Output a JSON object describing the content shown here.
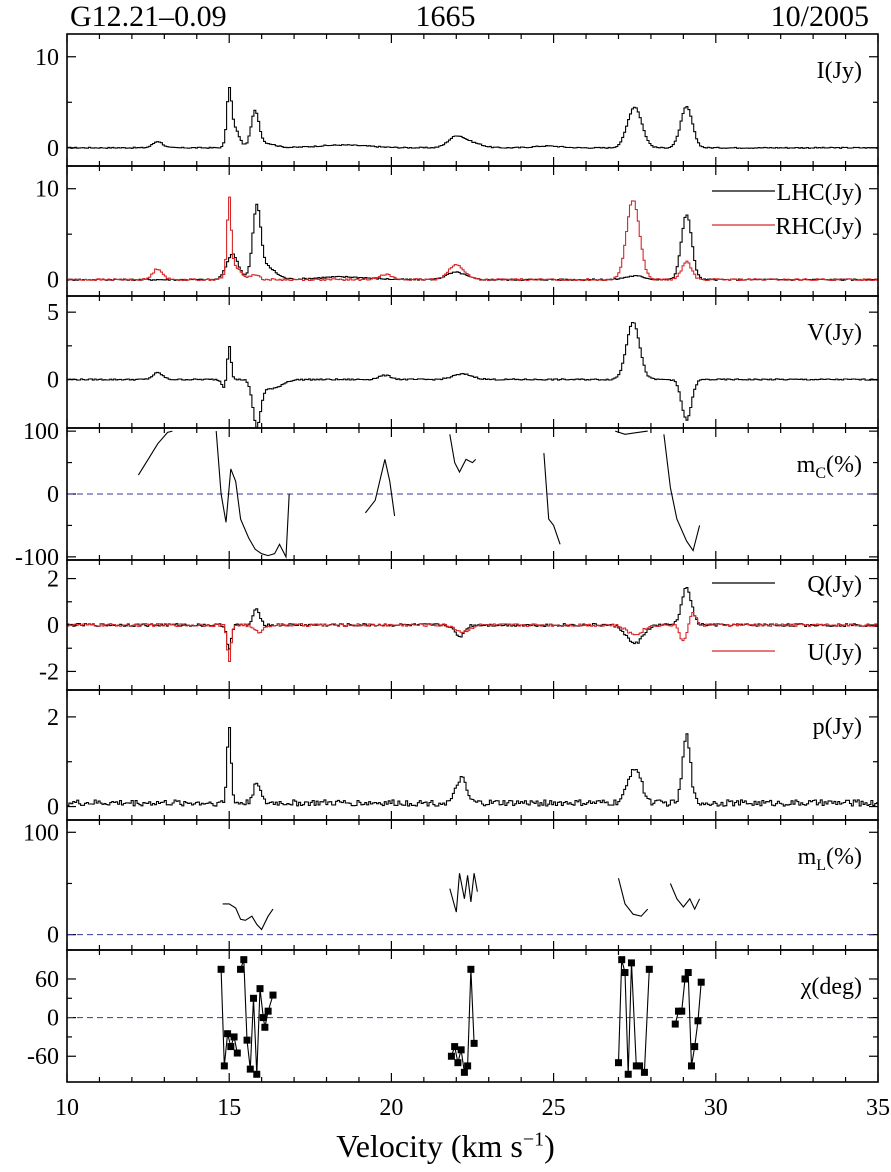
{
  "header": {
    "source": "G12.21–0.09",
    "frequency": "1665",
    "epoch": "10/2005"
  },
  "xlabel": {
    "text": "Velocity (km s",
    "exp": "−1",
    "close": ")"
  },
  "colors": {
    "axis": "#000000",
    "lhc": "#000000",
    "rhc": "#d62728",
    "zero_line": "#3b3b9a"
  },
  "chart_data": [
    {
      "id": "I",
      "type": "line",
      "label_text": "I(Jy)",
      "ylim": [
        -2,
        12.5
      ],
      "yticks": [
        {
          "v": 0,
          "t": "0"
        },
        {
          "v": 10,
          "t": "10"
        }
      ],
      "series": [
        {
          "color": "#000000",
          "peaks": [
            [
              12.8,
              0.7,
              0.15
            ],
            [
              15.0,
              5.3,
              0.07
            ],
            [
              15.15,
              2.2,
              0.15
            ],
            [
              15.8,
              3.8,
              0.12
            ],
            [
              16.1,
              0.5,
              0.3
            ],
            [
              18.5,
              0.3,
              0.8
            ],
            [
              22.0,
              1.2,
              0.25
            ],
            [
              22.5,
              0.5,
              0.3
            ],
            [
              24.8,
              0.2,
              0.4
            ],
            [
              27.5,
              4.5,
              0.22
            ],
            [
              29.1,
              4.5,
              0.18
            ]
          ],
          "noise": 0.06,
          "xlim": [
            10,
            35
          ]
        }
      ],
      "xlim": [
        10,
        35
      ]
    },
    {
      "id": "LR",
      "type": "line",
      "label_text": "",
      "ylim": [
        -1.8,
        12.5
      ],
      "yticks": [
        {
          "v": 0,
          "t": "0"
        },
        {
          "v": 10,
          "t": "10"
        }
      ],
      "legend": [
        {
          "name": "LHC(Jy)",
          "color": "#000000"
        },
        {
          "name": "RHC(Jy)",
          "color": "#d62728"
        }
      ],
      "series": [
        {
          "name": "LHC(Jy)",
          "color": "#000000",
          "peaks": [
            [
              15.1,
              2.8,
              0.18
            ],
            [
              15.85,
              7.2,
              0.12
            ],
            [
              16.1,
              1.5,
              0.3
            ],
            [
              18.5,
              0.3,
              0.8
            ],
            [
              22.0,
              0.8,
              0.3
            ],
            [
              27.5,
              0.4,
              0.3
            ],
            [
              29.1,
              7.2,
              0.16
            ]
          ],
          "noise": 0.08
        },
        {
          "name": "RHC(Jy)",
          "color": "#d62728",
          "peaks": [
            [
              12.8,
              1.2,
              0.15
            ],
            [
              15.0,
              8.0,
              0.06
            ],
            [
              15.15,
              1.5,
              0.2
            ],
            [
              15.8,
              0.6,
              0.12
            ],
            [
              19.8,
              0.6,
              0.2
            ],
            [
              22.0,
              1.6,
              0.25
            ],
            [
              27.45,
              8.8,
              0.2
            ],
            [
              29.1,
              2.0,
              0.15
            ]
          ],
          "noise": 0.1
        }
      ],
      "xlim": [
        10,
        35
      ]
    },
    {
      "id": "V",
      "type": "line",
      "label_text": "V(Jy)",
      "ylim": [
        -3.6,
        6.2
      ],
      "yticks": [
        {
          "v": 0,
          "t": "0"
        },
        {
          "v": 5,
          "t": "5"
        }
      ],
      "series": [
        {
          "color": "#000000",
          "peaks": [
            [
              12.8,
              0.5,
              0.15
            ],
            [
              15.0,
              2.6,
              0.06
            ],
            [
              14.85,
              -0.6,
              0.08
            ],
            [
              15.85,
              -3.3,
              0.12
            ],
            [
              16.3,
              -0.7,
              0.3
            ],
            [
              19.8,
              0.3,
              0.2
            ],
            [
              22.2,
              0.4,
              0.3
            ],
            [
              27.45,
              4.3,
              0.2
            ],
            [
              29.1,
              -3.0,
              0.15
            ]
          ],
          "noise": 0.05
        }
      ],
      "xlim": [
        10,
        35
      ]
    },
    {
      "id": "mc",
      "type": "line",
      "label_text": "m",
      "label_sub": "C",
      "label_tail": "(%)",
      "ylim": [
        -105,
        105
      ],
      "yticks": [
        {
          "v": -100,
          "t": "-100"
        },
        {
          "v": 0,
          "t": "0"
        },
        {
          "v": 100,
          "t": "100"
        }
      ],
      "zero_line": true,
      "segments": [
        [
          [
            12.2,
            30
          ],
          [
            12.5,
            55
          ],
          [
            12.8,
            80
          ],
          [
            13.1,
            98
          ],
          [
            13.25,
            100
          ]
        ],
        [
          [
            14.6,
            100
          ],
          [
            14.75,
            0
          ],
          [
            14.9,
            -45
          ],
          [
            15.05,
            40
          ],
          [
            15.2,
            20
          ],
          [
            15.35,
            -40
          ],
          [
            15.6,
            -70
          ],
          [
            15.8,
            -88
          ],
          [
            16.0,
            -95
          ],
          [
            16.2,
            -98
          ],
          [
            16.4,
            -95
          ],
          [
            16.55,
            -80
          ],
          [
            16.75,
            -100
          ],
          [
            16.85,
            0
          ]
        ],
        [
          [
            19.2,
            -30
          ],
          [
            19.5,
            -10
          ],
          [
            19.8,
            55
          ],
          [
            19.95,
            20
          ],
          [
            20.1,
            -35
          ]
        ],
        [
          [
            21.8,
            95
          ],
          [
            21.95,
            50
          ],
          [
            22.1,
            35
          ],
          [
            22.3,
            55
          ],
          [
            22.5,
            50
          ],
          [
            22.6,
            55
          ]
        ],
        [
          [
            24.7,
            65
          ],
          [
            24.85,
            -40
          ],
          [
            25.0,
            -50
          ],
          [
            25.2,
            -80
          ]
        ],
        [
          [
            26.9,
            100
          ],
          [
            27.2,
            95
          ],
          [
            27.6,
            98
          ],
          [
            27.9,
            100
          ]
        ],
        [
          [
            28.4,
            95
          ],
          [
            28.6,
            10
          ],
          [
            28.8,
            -40
          ],
          [
            29.1,
            -75
          ],
          [
            29.3,
            -90
          ],
          [
            29.5,
            -50
          ]
        ]
      ],
      "xlim": [
        10,
        35
      ]
    },
    {
      "id": "QU",
      "type": "line",
      "label_text": "",
      "ylim": [
        -2.8,
        2.8
      ],
      "yticks": [
        {
          "v": -2,
          "t": "-2"
        },
        {
          "v": 0,
          "t": "0"
        },
        {
          "v": 2,
          "t": "2"
        }
      ],
      "legend": [
        {
          "name": "Q(Jy)",
          "color": "#000000"
        },
        {
          "name": "U(Jy)",
          "color": "#d62728"
        }
      ],
      "series": [
        {
          "name": "Q(Jy)",
          "color": "#000000",
          "peaks": [
            [
              15.0,
              -1.0,
              0.07
            ],
            [
              15.85,
              0.7,
              0.1
            ],
            [
              22.1,
              -0.5,
              0.15
            ],
            [
              27.5,
              -0.8,
              0.25
            ],
            [
              29.1,
              1.6,
              0.15
            ]
          ],
          "noise": 0.06
        },
        {
          "name": "U(Jy)",
          "color": "#d62728",
          "peaks": [
            [
              15.0,
              -1.6,
              0.06
            ],
            [
              15.9,
              -0.3,
              0.15
            ],
            [
              22.2,
              -0.3,
              0.2
            ],
            [
              27.5,
              -0.4,
              0.25
            ],
            [
              29.0,
              -0.7,
              0.1
            ],
            [
              29.3,
              0.5,
              0.1
            ]
          ],
          "noise": 0.06
        }
      ],
      "xlim": [
        10,
        35
      ]
    },
    {
      "id": "p",
      "type": "line",
      "label_text": "p(Jy)",
      "ylim": [
        -0.3,
        2.6
      ],
      "yticks": [
        {
          "v": 0,
          "t": "0"
        },
        {
          "v": 2,
          "t": "2"
        }
      ],
      "series": [
        {
          "color": "#000000",
          "peaks": [
            [
              15.0,
              1.75,
              0.06
            ],
            [
              15.85,
              0.5,
              0.1
            ],
            [
              22.15,
              0.55,
              0.15
            ],
            [
              27.5,
              0.8,
              0.2
            ],
            [
              29.1,
              1.5,
              0.12
            ]
          ],
          "noise": 0.07,
          "base": 0.08
        }
      ],
      "xlim": [
        10,
        35
      ]
    },
    {
      "id": "ml",
      "type": "line",
      "label_text": "m",
      "label_sub": "L",
      "label_tail": "(%)",
      "ylim": [
        -15,
        112
      ],
      "yticks": [
        {
          "v": 0,
          "t": "0"
        },
        {
          "v": 100,
          "t": "100"
        }
      ],
      "zero_line": true,
      "segments": [
        [
          [
            14.8,
            30
          ],
          [
            15.0,
            30
          ],
          [
            15.2,
            26
          ],
          [
            15.35,
            15
          ],
          [
            15.5,
            14
          ],
          [
            15.7,
            18
          ],
          [
            15.85,
            10
          ],
          [
            16.0,
            5
          ],
          [
            16.2,
            18
          ],
          [
            16.35,
            25
          ]
        ],
        [
          [
            21.8,
            45
          ],
          [
            22.0,
            22
          ],
          [
            22.1,
            60
          ],
          [
            22.25,
            35
          ],
          [
            22.35,
            58
          ],
          [
            22.45,
            32
          ],
          [
            22.55,
            60
          ],
          [
            22.65,
            42
          ]
        ],
        [
          [
            27.0,
            55
          ],
          [
            27.2,
            30
          ],
          [
            27.45,
            20
          ],
          [
            27.7,
            18
          ],
          [
            27.9,
            25
          ]
        ],
        [
          [
            28.6,
            50
          ],
          [
            28.8,
            35
          ],
          [
            29.0,
            27
          ],
          [
            29.2,
            35
          ],
          [
            29.35,
            25
          ],
          [
            29.5,
            35
          ]
        ]
      ],
      "xlim": [
        10,
        35
      ]
    },
    {
      "id": "chi",
      "type": "scatter",
      "label_text": "χ(deg)",
      "ylim": [
        -100,
        105
      ],
      "yticks": [
        {
          "v": -60,
          "t": "-60"
        },
        {
          "v": 0,
          "t": "0"
        },
        {
          "v": 60,
          "t": "60"
        }
      ],
      "zero_line": true,
      "segments": [
        [
          [
            14.75,
            75
          ],
          [
            14.85,
            -75
          ],
          [
            14.95,
            -25
          ],
          [
            15.05,
            -45
          ],
          [
            15.15,
            -30
          ],
          [
            15.25,
            -55
          ]
        ],
        [
          [
            15.35,
            75
          ],
          [
            15.45,
            90
          ],
          [
            15.55,
            -35
          ],
          [
            15.65,
            -80
          ],
          [
            15.75,
            30
          ],
          [
            15.85,
            -88
          ],
          [
            15.95,
            45
          ],
          [
            16.05,
            0
          ],
          [
            16.1,
            -15
          ],
          [
            16.2,
            10
          ],
          [
            16.35,
            35
          ]
        ],
        [
          [
            21.85,
            -60
          ],
          [
            21.95,
            -45
          ],
          [
            22.05,
            -70
          ],
          [
            22.15,
            -50
          ],
          [
            22.25,
            -85
          ],
          [
            22.35,
            -75
          ],
          [
            22.45,
            75
          ],
          [
            22.55,
            -40
          ]
        ],
        [
          [
            27.0,
            -70
          ],
          [
            27.1,
            90
          ],
          [
            27.2,
            70
          ],
          [
            27.3,
            -88
          ],
          [
            27.4,
            85
          ],
          [
            27.55,
            -75
          ],
          [
            27.65,
            -75
          ],
          [
            27.8,
            -85
          ],
          [
            27.95,
            75
          ]
        ],
        [
          [
            28.75,
            -10
          ],
          [
            28.85,
            10
          ],
          [
            28.95,
            10
          ],
          [
            29.05,
            60
          ],
          [
            29.15,
            70
          ],
          [
            29.25,
            -75
          ],
          [
            29.35,
            -45
          ],
          [
            29.45,
            -5
          ],
          [
            29.55,
            55
          ]
        ]
      ],
      "xlim": [
        10,
        35
      ]
    }
  ],
  "x_axis": {
    "ticks": [
      {
        "v": 10,
        "t": "10"
      },
      {
        "v": 15,
        "t": "15"
      },
      {
        "v": 20,
        "t": "20"
      },
      {
        "v": 25,
        "t": "25"
      },
      {
        "v": 30,
        "t": "30"
      },
      {
        "v": 35,
        "t": "35"
      }
    ]
  }
}
